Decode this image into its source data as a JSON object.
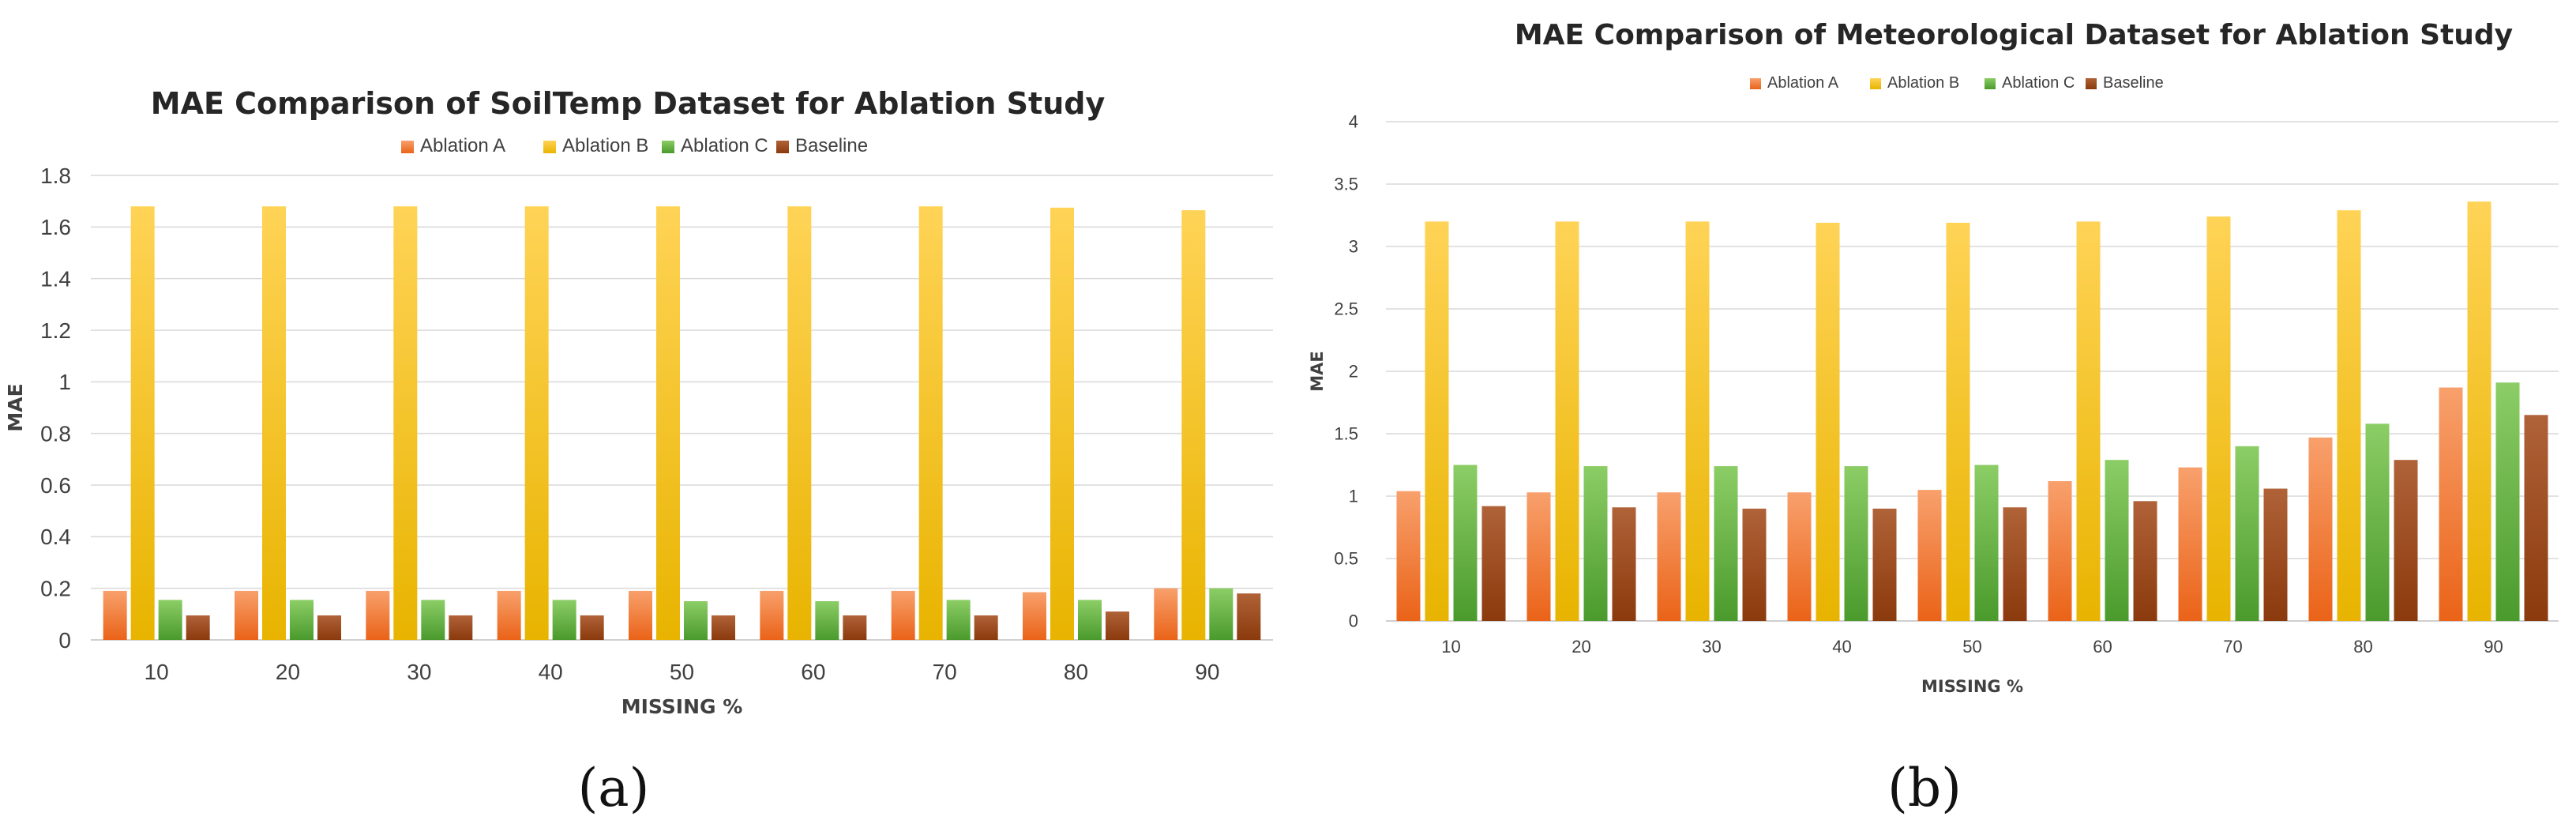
{
  "colors": {
    "Ablation A": [
      "#f8a06c",
      "#ea6318"
    ],
    "Ablation B": [
      "#ffd356",
      "#e8b400"
    ],
    "Ablation C": [
      "#8ccd66",
      "#4a9a2c"
    ],
    "Baseline": [
      "#b06238",
      "#8a3a0c"
    ]
  },
  "chart_data": [
    {
      "type": "bar",
      "title": "MAE Comparison of SoilTemp Dataset for Ablation Study",
      "xlabel": "MISSING %",
      "ylabel": "MAE",
      "caption": "(a)",
      "categories": [
        "10",
        "20",
        "30",
        "40",
        "50",
        "60",
        "70",
        "80",
        "90"
      ],
      "yticks": [
        "0",
        "0.2",
        "0.4",
        "0.6",
        "0.8",
        "1",
        "1.2",
        "1.4",
        "1.6",
        "1.8"
      ],
      "ylim": [
        0,
        1.8
      ],
      "grid": true,
      "legend_position": "top",
      "series": [
        {
          "name": "Ablation A",
          "values": [
            0.19,
            0.19,
            0.19,
            0.19,
            0.19,
            0.19,
            0.19,
            0.185,
            0.2
          ]
        },
        {
          "name": "Ablation B",
          "values": [
            1.68,
            1.68,
            1.68,
            1.68,
            1.68,
            1.68,
            1.68,
            1.675,
            1.665
          ]
        },
        {
          "name": "Ablation C",
          "values": [
            0.155,
            0.155,
            0.155,
            0.155,
            0.15,
            0.15,
            0.155,
            0.155,
            0.2
          ]
        },
        {
          "name": "Baseline",
          "values": [
            0.095,
            0.095,
            0.095,
            0.095,
            0.095,
            0.095,
            0.095,
            0.11,
            0.18
          ]
        }
      ]
    },
    {
      "type": "bar",
      "title": "MAE Comparison of Meteorological Dataset for Ablation Study",
      "xlabel": "MISSING %",
      "ylabel": "MAE",
      "caption": "(b)",
      "categories": [
        "10",
        "20",
        "30",
        "40",
        "50",
        "60",
        "70",
        "80",
        "90"
      ],
      "yticks": [
        "0",
        "0.5",
        "1",
        "1.5",
        "2",
        "2.5",
        "3",
        "3.5",
        "4"
      ],
      "ylim": [
        0,
        4
      ],
      "grid": true,
      "legend_position": "top",
      "series": [
        {
          "name": "Ablation A",
          "values": [
            1.04,
            1.03,
            1.03,
            1.03,
            1.05,
            1.12,
            1.23,
            1.47,
            1.87
          ]
        },
        {
          "name": "Ablation B",
          "values": [
            3.2,
            3.2,
            3.2,
            3.19,
            3.19,
            3.2,
            3.24,
            3.29,
            3.36
          ]
        },
        {
          "name": "Ablation C",
          "values": [
            1.25,
            1.24,
            1.24,
            1.24,
            1.25,
            1.29,
            1.4,
            1.58,
            1.91
          ]
        },
        {
          "name": "Baseline",
          "values": [
            0.92,
            0.91,
            0.9,
            0.9,
            0.91,
            0.96,
            1.06,
            1.29,
            1.65
          ]
        }
      ]
    }
  ]
}
